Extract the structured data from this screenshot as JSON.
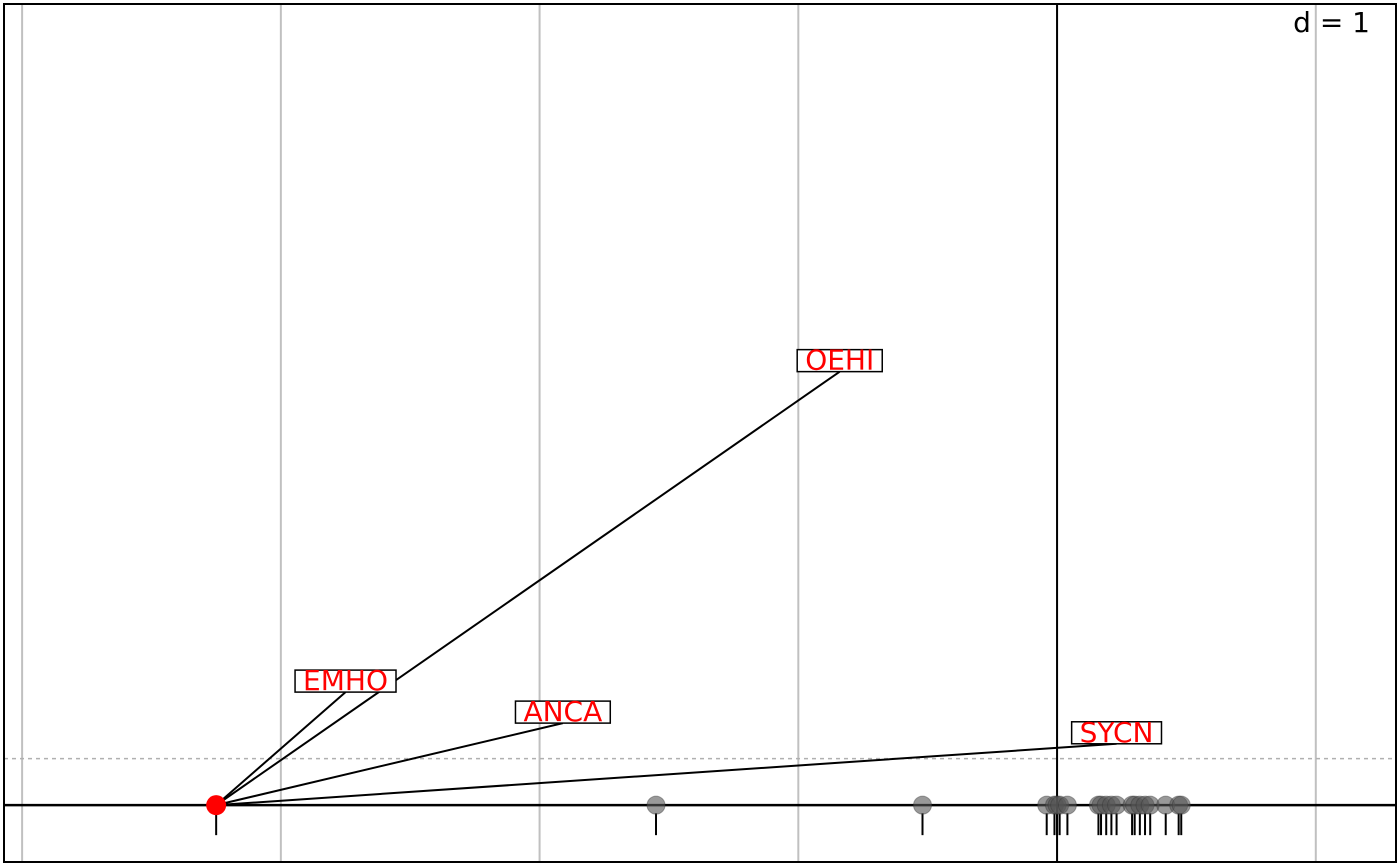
{
  "chart_data": {
    "type": "scatter",
    "title": "",
    "xlabel": "",
    "ylabel": "",
    "scale_label": "d = 1",
    "xlim": [
      -4.07,
      1.31
    ],
    "ylim": [
      -0.22,
      3.1
    ],
    "grid": true,
    "grid_x": [
      -4,
      -3,
      -2,
      -1,
      0,
      1
    ],
    "highlight_color": "#ff0000",
    "point_color": "#555555",
    "center": {
      "x": -3.25,
      "y": 0
    },
    "labels": [
      {
        "name": "EMHO",
        "x": -2.75,
        "y": 0.48
      },
      {
        "name": "ANCA",
        "x": -1.91,
        "y": 0.36
      },
      {
        "name": "OEHI",
        "x": -0.84,
        "y": 1.72
      },
      {
        "name": "SYCN",
        "x": 0.23,
        "y": 0.28
      }
    ],
    "points": [
      -3.25,
      -1.55,
      -0.52,
      -0.04,
      -0.01,
      0.0,
      0.01,
      0.04,
      0.16,
      0.17,
      0.19,
      0.21,
      0.23,
      0.29,
      0.3,
      0.32,
      0.34,
      0.36,
      0.42,
      0.47,
      0.48
    ],
    "dashed_y": 0.18
  }
}
